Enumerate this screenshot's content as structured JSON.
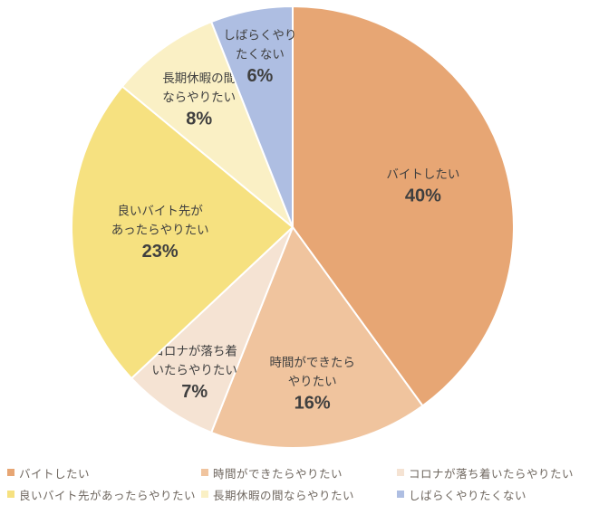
{
  "chart_data": {
    "type": "pie",
    "title": "",
    "start_angle_deg": 0,
    "direction": "clockwise",
    "border_color": "#FFFFFF",
    "label_color": "#3F3F3F",
    "background_color": "#FFFFFF",
    "legend": {
      "position": "bottom",
      "rows": 2,
      "columns": 3,
      "text_color": "#6F675F"
    },
    "slices": [
      {
        "label": "バイトしたい",
        "label_lines": [
          "バイトしたい"
        ],
        "value": 40,
        "pct_text": "40%",
        "color": "#E7A674",
        "label_r": 0.62
      },
      {
        "label": "時間ができたらやりたい",
        "label_lines": [
          "時間ができたら",
          "やりたい"
        ],
        "value": 16,
        "pct_text": "16%",
        "color": "#F0C49E",
        "label_r": 0.71
      },
      {
        "label": "コロナが落ち着いたらやりたい",
        "label_lines": [
          "コロナが落ち着",
          "いたらやりたい"
        ],
        "value": 7,
        "pct_text": "7%",
        "color": "#F5E3D3",
        "label_r": 0.79
      },
      {
        "label": "良いバイト先があったらやりたい",
        "label_lines": [
          "良いバイト先が",
          "あったらやりたい"
        ],
        "value": 23,
        "pct_text": "23%",
        "color": "#F6E180",
        "label_r": 0.6
      },
      {
        "label": "長期休暇の間ならやりたい",
        "label_lines": [
          "長期休暇の間",
          "ならやりたい"
        ],
        "value": 8,
        "pct_text": "8%",
        "color": "#FAF0C5",
        "label_r": 0.72
      },
      {
        "label": "しばらくやりたくない",
        "label_lines": [
          "しばらくやり",
          "たくない"
        ],
        "value": 6,
        "pct_text": "6%",
        "color": "#AEBEE2",
        "label_r": 0.79
      }
    ]
  }
}
